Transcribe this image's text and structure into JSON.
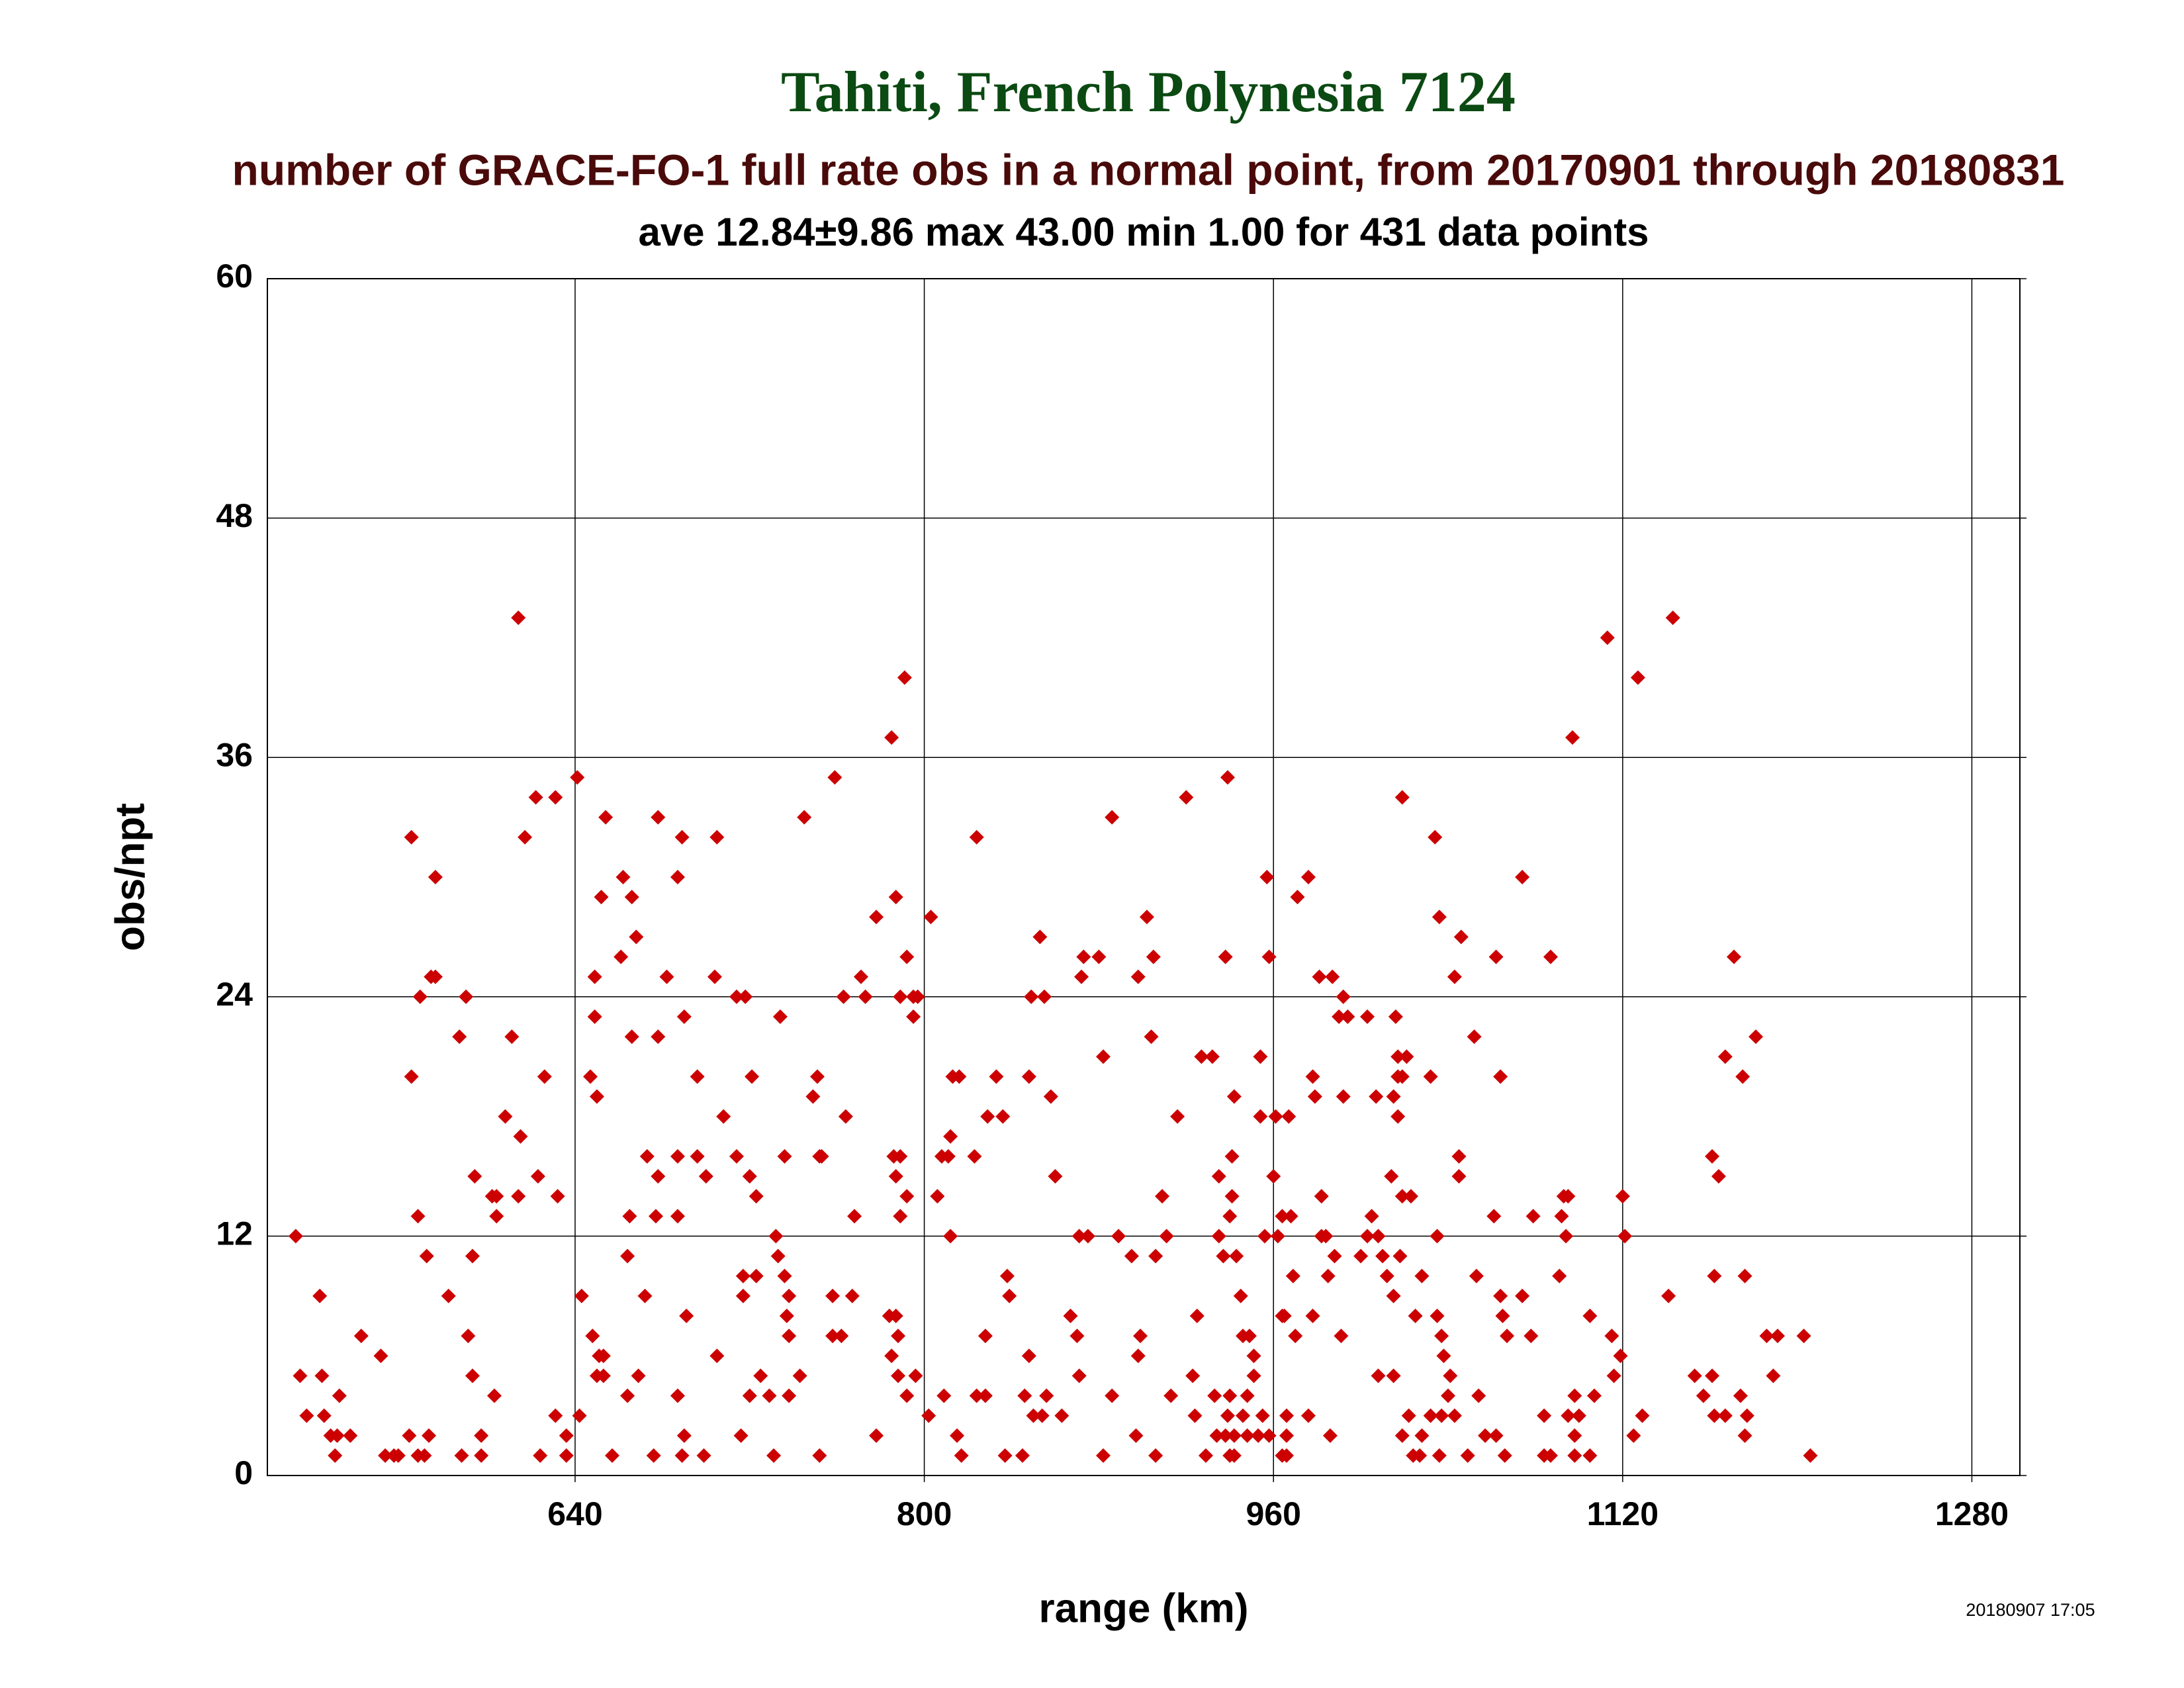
{
  "chart_data": {
    "type": "scatter",
    "title": "Tahiti, French Polynesia 7124",
    "subtitle": "number of GRACE-FO-1 full rate obs in a normal point, from 20170901 through 20180831",
    "note": "ave 12.84±9.86 max 43.00 min 1.00 for 431 data points",
    "x_label": "range (km)",
    "y_label": "obs/npt",
    "timestamp": "20180907 17:05",
    "xlim": [
      499,
      1302
    ],
    "ylim": [
      0,
      60
    ],
    "xticks": [
      640,
      800,
      960,
      1120,
      1280
    ],
    "yticks": [
      0,
      12,
      24,
      36,
      48,
      60
    ],
    "grid": true,
    "series": [
      {
        "color": "#cc0000",
        "x": [
          512,
          514,
          517,
          523,
          524,
          525,
          528,
          530,
          532,
          531,
          537,
          542,
          551,
          553,
          557,
          559,
          564,
          565,
          565,
          568,
          569,
          568,
          571,
          573,
          572,
          574,
          576,
          576,
          582,
          587,
          588,
          590,
          591,
          593,
          593,
          594,
          597,
          597,
          602,
          603,
          604,
          604,
          608,
          611,
          614,
          614,
          615,
          617,
          622,
          623,
          624,
          626,
          631,
          631,
          632,
          636,
          636,
          641,
          642,
          643,
          647,
          648,
          649,
          649,
          650,
          650,
          651,
          652,
          653,
          653,
          654,
          657,
          661,
          662,
          664,
          664,
          665,
          666,
          666,
          668,
          669,
          672,
          673,
          676,
          677,
          678,
          678,
          678,
          682,
          687,
          687,
          687,
          687,
          690,
          689,
          689,
          690,
          691,
          696,
          696,
          699,
          700,
          704,
          705,
          705,
          708,
          714,
          714,
          716,
          717,
          717,
          718,
          720,
          721,
          723,
          723,
          725,
          720,
          729,
          731,
          732,
          733,
          734,
          736,
          736,
          737,
          738,
          738,
          738,
          743,
          745,
          749,
          751,
          752,
          752,
          753,
          758,
          758,
          759,
          762,
          763,
          764,
          767,
          768,
          771,
          773,
          778,
          778,
          784,
          785,
          785,
          787,
          786,
          787,
          787,
          788,
          788,
          789,
          789,
          789,
          791,
          792,
          792,
          792,
          795,
          795,
          796,
          797,
          802,
          803,
          806,
          808,
          809,
          812,
          811,
          812,
          813,
          815,
          816,
          817,
          823,
          824,
          824,
          828,
          828,
          829,
          833,
          836,
          837,
          838,
          839,
          845,
          846,
          848,
          848,
          849,
          850,
          853,
          854,
          855,
          856,
          858,
          860,
          863,
          867,
          870,
          872,
          873,
          871,
          871,
          875,
          880,
          882,
          882,
          886,
          886,
          889,
          895,
          897,
          898,
          898,
          899,
          902,
          904,
          905,
          906,
          906,
          909,
          911,
          913,
          916,
          920,
          923,
          924,
          925,
          927,
          929,
          932,
          933,
          934,
          935,
          935,
          937,
          938,
          938,
          939,
          939,
          940,
          940,
          940,
          941,
          941,
          942,
          942,
          942,
          943,
          945,
          946,
          946,
          948,
          948,
          949,
          951,
          951,
          953,
          954,
          954,
          955,
          956,
          957,
          958,
          958,
          960,
          961,
          962,
          964,
          964,
          964,
          965,
          966,
          966,
          966,
          967,
          968,
          969,
          970,
          971,
          976,
          976,
          978,
          978,
          979,
          981,
          982,
          982,
          984,
          985,
          986,
          987,
          988,
          990,
          991,
          992,
          992,
          994,
          1000,
          1003,
          1003,
          1005,
          1007,
          1008,
          1008,
          1010,
          1012,
          1014,
          1015,
          1015,
          1015,
          1016,
          1017,
          1017,
          1017,
          1018,
          1019,
          1019,
          1019,
          1019,
          1021,
          1022,
          1023,
          1024,
          1025,
          1027,
          1028,
          1028,
          1032,
          1032,
          1034,
          1035,
          1035,
          1036,
          1036,
          1037,
          1037,
          1038,
          1040,
          1041,
          1043,
          1043,
          1045,
          1045,
          1046,
          1049,
          1052,
          1053,
          1054,
          1057,
          1061,
          1062,
          1062,
          1064,
          1064,
          1065,
          1066,
          1067,
          1074,
          1074,
          1078,
          1079,
          1084,
          1084,
          1087,
          1087,
          1091,
          1092,
          1093,
          1094,
          1095,
          1095,
          1097,
          1098,
          1098,
          1098,
          1100,
          1105,
          1105,
          1107,
          1113,
          1115,
          1116,
          1119,
          1120,
          1121,
          1125,
          1127,
          1129,
          1141,
          1143,
          1153,
          1157,
          1161,
          1161,
          1162,
          1162,
          1164,
          1167,
          1167,
          1171,
          1174,
          1175,
          1176,
          1176,
          1177,
          1181,
          1186,
          1189,
          1191,
          1203,
          1206
        ],
        "values": [
          12,
          5,
          3,
          9,
          5,
          3,
          2,
          1,
          4,
          2,
          2,
          7,
          6,
          1,
          1,
          1,
          2,
          32,
          20,
          13,
          24,
          1,
          1,
          2,
          11,
          25,
          25,
          30,
          9,
          22,
          1,
          24,
          7,
          11,
          5,
          15,
          2,
          1,
          14,
          4,
          13,
          14,
          18,
          22,
          43,
          14,
          17,
          32,
          34,
          15,
          1,
          20,
          34,
          3,
          14,
          2,
          1,
          35,
          3,
          9,
          20,
          7,
          25,
          23,
          19,
          5,
          6,
          29,
          6,
          5,
          33,
          1,
          26,
          30,
          4,
          11,
          13,
          22,
          29,
          27,
          5,
          9,
          16,
          1,
          13,
          33,
          15,
          22,
          25,
          13,
          30,
          16,
          4,
          23,
          1,
          32,
          2,
          8,
          20,
          16,
          1,
          15,
          25,
          32,
          6,
          18,
          24,
          16,
          2,
          9,
          10,
          24,
          15,
          20,
          10,
          14,
          5,
          4,
          4,
          1,
          12,
          11,
          23,
          10,
          16,
          8,
          9,
          7,
          4,
          5,
          33,
          19,
          20,
          1,
          16,
          16,
          9,
          7,
          35,
          7,
          24,
          18,
          9,
          13,
          25,
          24,
          2,
          28,
          8,
          37,
          6,
          29,
          16,
          8,
          15,
          7,
          5,
          24,
          13,
          16,
          40,
          26,
          4,
          14,
          24,
          23,
          5,
          24,
          3,
          28,
          14,
          16,
          4,
          17,
          16,
          12,
          20,
          2,
          20,
          1,
          16,
          32,
          4,
          7,
          4,
          18,
          20,
          18,
          1,
          10,
          9,
          1,
          4,
          20,
          6,
          24,
          3,
          27,
          3,
          24,
          4,
          19,
          15,
          3,
          8,
          7,
          25,
          26,
          12,
          5,
          12,
          26,
          21,
          1,
          4,
          33,
          12,
          11,
          2,
          25,
          6,
          7,
          28,
          22,
          26,
          11,
          1,
          14,
          12,
          4,
          18,
          34,
          5,
          3,
          8,
          21,
          1,
          21,
          4,
          2,
          12,
          15,
          11,
          2,
          26,
          35,
          3,
          1,
          4,
          13,
          14,
          16,
          2,
          19,
          1,
          11,
          9,
          7,
          3,
          2,
          4,
          7,
          6,
          5,
          2,
          18,
          21,
          3,
          12,
          30,
          26,
          2,
          15,
          18,
          12,
          8,
          1,
          13,
          8,
          3,
          1,
          2,
          18,
          13,
          10,
          7,
          29,
          30,
          3,
          20,
          8,
          19,
          25,
          14,
          12,
          12,
          10,
          2,
          25,
          11,
          23,
          7,
          24,
          19,
          23,
          11,
          23,
          12,
          13,
          19,
          5,
          12,
          11,
          10,
          15,
          9,
          5,
          19,
          23,
          21,
          18,
          20,
          11,
          14,
          34,
          2,
          20,
          21,
          3,
          14,
          1,
          8,
          1,
          10,
          2,
          20,
          3,
          32,
          12,
          8,
          28,
          1,
          7,
          3,
          6,
          4,
          5,
          25,
          3,
          15,
          16,
          27,
          1,
          22,
          10,
          4,
          2,
          13,
          26,
          2,
          20,
          9,
          8,
          1,
          7,
          30,
          9,
          7,
          13,
          3,
          1,
          26,
          1,
          10,
          13,
          14,
          12,
          14,
          3,
          37,
          2,
          4,
          1,
          3,
          8,
          1,
          4,
          42,
          7,
          5,
          6,
          14,
          12,
          2,
          40,
          3,
          9,
          43,
          5,
          4,
          5,
          16,
          10,
          3,
          15,
          21,
          3,
          26,
          4,
          20,
          10,
          2,
          3,
          22,
          7,
          5,
          7,
          7,
          1
        ]
      }
    ]
  }
}
